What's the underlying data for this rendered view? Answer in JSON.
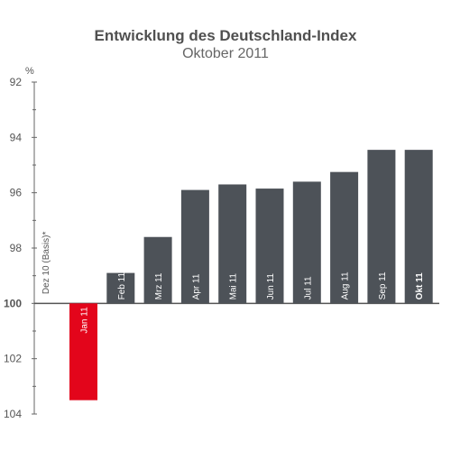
{
  "chart_data": {
    "type": "bar",
    "title": "Entwicklung des Deutschland-Index",
    "subtitle": "Oktober 2011",
    "unit": "%",
    "baseline_label": "Dez 10 (Basis)*",
    "baseline": 100,
    "yaxis": {
      "reversed": true,
      "min": 92,
      "max": 104,
      "ticks": [
        92,
        94,
        96,
        98,
        100,
        102,
        104
      ]
    },
    "categories": [
      "Jan 11",
      "Feb 11",
      "Mrz 11",
      "Apr 11",
      "Mai 11",
      "Jun 11",
      "Jul 11",
      "Aug 11",
      "Sep 11",
      "Okt 11"
    ],
    "values": [
      103.5,
      98.9,
      97.6,
      95.9,
      95.7,
      95.85,
      95.6,
      95.25,
      94.45,
      94.45
    ],
    "highlight_category": "Okt 11",
    "colors": {
      "positive": "#4d5258",
      "negative": "#e3051b",
      "axis": "#666666"
    }
  }
}
